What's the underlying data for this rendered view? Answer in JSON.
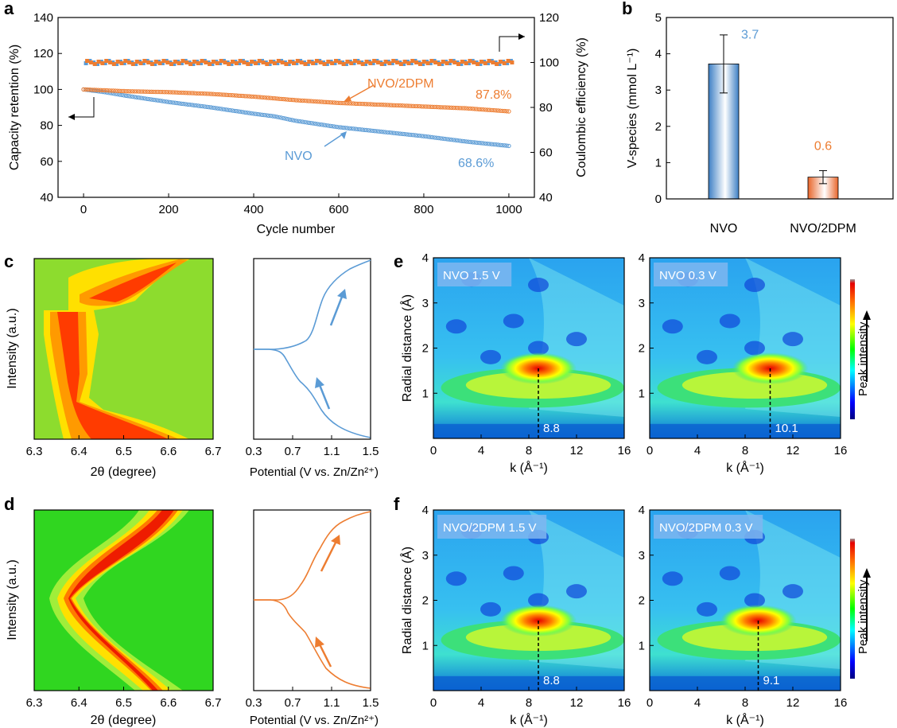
{
  "panels": {
    "a": "a",
    "b": "b",
    "c": "c",
    "d": "d",
    "e": "e",
    "f": "f"
  },
  "chart_data": [
    {
      "id": "a",
      "type": "scatter",
      "xlabel": "Cycle number",
      "ylabel": "Capacity retention (%)",
      "y2label": "Coulombic efficiency (%)",
      "xlim": [
        -60,
        1060
      ],
      "ylim": [
        40,
        140
      ],
      "y2lim": [
        40,
        120
      ],
      "xticks": [
        0,
        200,
        400,
        600,
        800,
        1000
      ],
      "yticks": [
        40,
        60,
        80,
        100,
        120,
        140
      ],
      "y2ticks": [
        40,
        60,
        80,
        100,
        120
      ],
      "series": [
        {
          "name": "NVO",
          "color": "#5b9bd5",
          "axis": "left",
          "x": [
            0,
            50,
            100,
            200,
            300,
            400,
            450,
            500,
            600,
            700,
            800,
            900,
            1000
          ],
          "y": [
            100,
            98.5,
            96.5,
            93,
            90,
            86.5,
            85,
            82.5,
            79,
            76.5,
            74,
            71,
            68.6
          ]
        },
        {
          "name": "NVO/2DPM",
          "color": "#ed7d31",
          "axis": "left",
          "x": [
            0,
            100,
            200,
            300,
            400,
            500,
            600,
            700,
            800,
            900,
            1000
          ],
          "y": [
            100,
            99,
            98.5,
            97.5,
            96,
            94,
            92.5,
            91.5,
            90.5,
            89.5,
            87.8
          ]
        },
        {
          "name": "NVO CE",
          "color": "#5b9bd5",
          "axis": "right",
          "x": [
            0,
            1000
          ],
          "y": [
            100,
            100
          ]
        },
        {
          "name": "NVO/2DPM CE",
          "color": "#ed7d31",
          "axis": "right",
          "x": [
            0,
            1000
          ],
          "y": [
            100,
            100
          ]
        }
      ],
      "annotations": {
        "nvo_name": "NVO",
        "nvo2dpm_name": "NVO/2DPM",
        "nvo_end": "68.6%",
        "nvo2dpm_end": "87.8%"
      }
    },
    {
      "id": "b",
      "type": "bar",
      "ylabel": "V-species (mmol L⁻¹)",
      "ylim": [
        0,
        5
      ],
      "yticks": [
        0,
        1,
        2,
        3,
        4,
        5
      ],
      "categories": [
        "NVO",
        "NVO/2DPM"
      ],
      "values": [
        3.72,
        0.6
      ],
      "errors": [
        0.8,
        0.18
      ],
      "value_labels": [
        "3.7",
        "0.6"
      ],
      "colors": [
        "#5b9bd5",
        "#ed7d31"
      ]
    },
    {
      "id": "c-map",
      "type": "heatmap",
      "xlabel": "2θ (degree)",
      "ylabel": "Intensity (a.u.)",
      "xticks": [
        "6.3",
        "6.4",
        "6.5",
        "6.6",
        "6.7"
      ],
      "xlim": [
        6.3,
        6.7
      ]
    },
    {
      "id": "c-curve",
      "type": "line",
      "xlabel": "Potential (V vs. Zn/Zn²⁺)",
      "xticks": [
        "0.3",
        "0.7",
        "1.1",
        "1.5"
      ],
      "xlim": [
        0.3,
        1.5
      ],
      "color": "#5b9bd5"
    },
    {
      "id": "d-map",
      "type": "heatmap",
      "xlabel": "2θ (degree)",
      "ylabel": "Intensity (a.u.)",
      "xticks": [
        "6.3",
        "6.4",
        "6.5",
        "6.6",
        "6.7"
      ],
      "xlim": [
        6.3,
        6.7
      ]
    },
    {
      "id": "d-curve",
      "type": "line",
      "xlabel": "Potential (V vs. Zn/Zn²⁺)",
      "xticks": [
        "0.3",
        "0.7",
        "1.1",
        "1.5"
      ],
      "xlim": [
        0.3,
        1.5
      ],
      "color": "#ed7d31"
    },
    {
      "id": "e",
      "type": "heatmap",
      "ylabel": "Radial distance (Å)",
      "xlabel": "k (Å⁻¹)",
      "xticks": [
        "0",
        "4",
        "8",
        "12",
        "16"
      ],
      "yticks": [
        "1",
        "2",
        "3",
        "4"
      ],
      "maps": [
        {
          "label": "NVO 1.5 V",
          "peak_k": "8.8"
        },
        {
          "label": "NVO 0.3 V",
          "peak_k": "10.1"
        }
      ],
      "colorbar_label": "Peak intensity"
    },
    {
      "id": "f",
      "type": "heatmap",
      "ylabel": "Radial distance (Å)",
      "xlabel": "k (Å⁻¹)",
      "xticks": [
        "0",
        "4",
        "8",
        "12",
        "16"
      ],
      "yticks": [
        "1",
        "2",
        "3",
        "4"
      ],
      "maps": [
        {
          "label": "NVO/2DPM 1.5 V",
          "peak_k": "8.8"
        },
        {
          "label": "NVO/2DPM 0.3 V",
          "peak_k": "9.1"
        }
      ],
      "colorbar_label": "Peak intensity"
    }
  ]
}
